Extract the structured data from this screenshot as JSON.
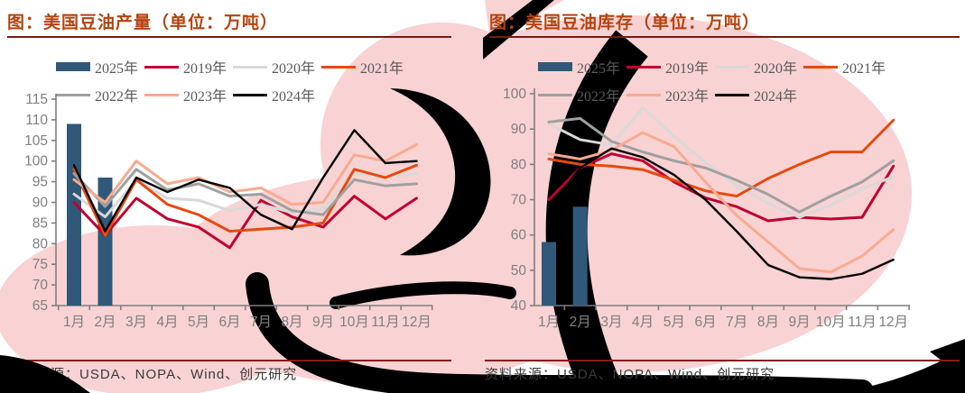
{
  "watermark": {
    "pink": "#f9d2d4",
    "black": "#000000"
  },
  "axis_color": "#7f7f7f",
  "chart_data": [
    {
      "type": "combo_bar_line",
      "title": "图：美国豆油产量（单位：万吨）",
      "source": "资料来源：USDA、NOPA、Wind、创元研究",
      "categories": [
        "1月",
        "2月",
        "3月",
        "4月",
        "5月",
        "6月",
        "7月",
        "8月",
        "9月",
        "10月",
        "11月",
        "12月"
      ],
      "y_axis": {
        "min": 65,
        "max": 115,
        "step": 5
      },
      "bar_series": {
        "name": "2025年",
        "color": "#2f5879",
        "values": [
          109,
          96
        ]
      },
      "series": [
        {
          "name": "2019年",
          "color": "#c00030",
          "values": [
            90,
            82,
            91,
            86,
            84,
            79,
            90.5,
            86.5,
            84,
            91.5,
            86,
            91
          ]
        },
        {
          "name": "2020年",
          "color": "#d9d9d9",
          "values": [
            92,
            86.5,
            95.5,
            91,
            90.5,
            88,
            89.5,
            87.5,
            88.5,
            97,
            96,
            97
          ]
        },
        {
          "name": "2021年",
          "color": "#e64a0e",
          "values": [
            98,
            82,
            95.5,
            89.5,
            87,
            83,
            83.5,
            84,
            85,
            98,
            96,
            99
          ]
        },
        {
          "name": "2022年",
          "color": "#a0a0a0",
          "values": [
            97,
            89,
            98,
            93,
            94.5,
            91.5,
            92,
            88,
            87,
            95.5,
            94,
            94.5
          ]
        },
        {
          "name": "2023年",
          "color": "#f9aa8f",
          "values": [
            95.5,
            90,
            100,
            94.5,
            96,
            92.5,
            93.5,
            89.5,
            90,
            101.5,
            100,
            104
          ]
        },
        {
          "name": "2024年",
          "color": "#000000",
          "values": [
            99,
            83,
            96,
            92.5,
            95.5,
            93.5,
            87,
            83.5,
            96,
            107.5,
            99.5,
            100
          ]
        }
      ],
      "legend_rows": [
        [
          "2025年",
          "2019年",
          "2020年",
          "2021年"
        ],
        [
          "2022年",
          "2023年",
          "2024年"
        ]
      ]
    },
    {
      "type": "combo_bar_line",
      "title": "图：美国豆油库存（单位：万吨）",
      "source": "资料来源：USDA、NOPA、Wind、创元研究",
      "categories": [
        "1月",
        "2月",
        "3月",
        "4月",
        "5月",
        "6月",
        "7月",
        "8月",
        "9月",
        "10月",
        "11月",
        "12月"
      ],
      "y_axis": {
        "min": 40,
        "max": 100,
        "step": 10
      },
      "bar_series": {
        "name": "2025年",
        "color": "#2f5879",
        "values": [
          58,
          68
        ]
      },
      "series": [
        {
          "name": "2019年",
          "color": "#c00030",
          "values": [
            70,
            79,
            83,
            81,
            75,
            70.5,
            68,
            64,
            65,
            64.5,
            65,
            79.5
          ]
        },
        {
          "name": "2020年",
          "color": "#d9d9d9",
          "values": [
            91.5,
            87,
            85.5,
            96,
            88,
            80.5,
            74,
            69,
            65,
            68.5,
            73,
            76.5
          ]
        },
        {
          "name": "2021年",
          "color": "#e64a0e",
          "values": [
            81.5,
            80,
            79.5,
            78.5,
            75.5,
            72.5,
            71,
            76,
            80,
            83.5,
            83.5,
            92.5
          ]
        },
        {
          "name": "2022年",
          "color": "#a0a0a0",
          "values": [
            92,
            93,
            86.5,
            83.5,
            81,
            79,
            75.5,
            71.5,
            66.5,
            71,
            75,
            81
          ]
        },
        {
          "name": "2023年",
          "color": "#f9aa8f",
          "values": [
            83,
            81.5,
            84,
            89,
            85,
            75,
            65.5,
            58,
            50.5,
            49.5,
            54,
            61.5
          ]
        },
        {
          "name": "2024年",
          "color": "#000000",
          "values": [
            67.5,
            79,
            84.5,
            82,
            77,
            70,
            61,
            51.5,
            48,
            47.5,
            49,
            53
          ]
        }
      ],
      "legend_rows": [
        [
          "2025年",
          "2019年",
          "2020年",
          "2021年"
        ],
        [
          "2022年",
          "2023年",
          "2024年"
        ]
      ]
    }
  ]
}
